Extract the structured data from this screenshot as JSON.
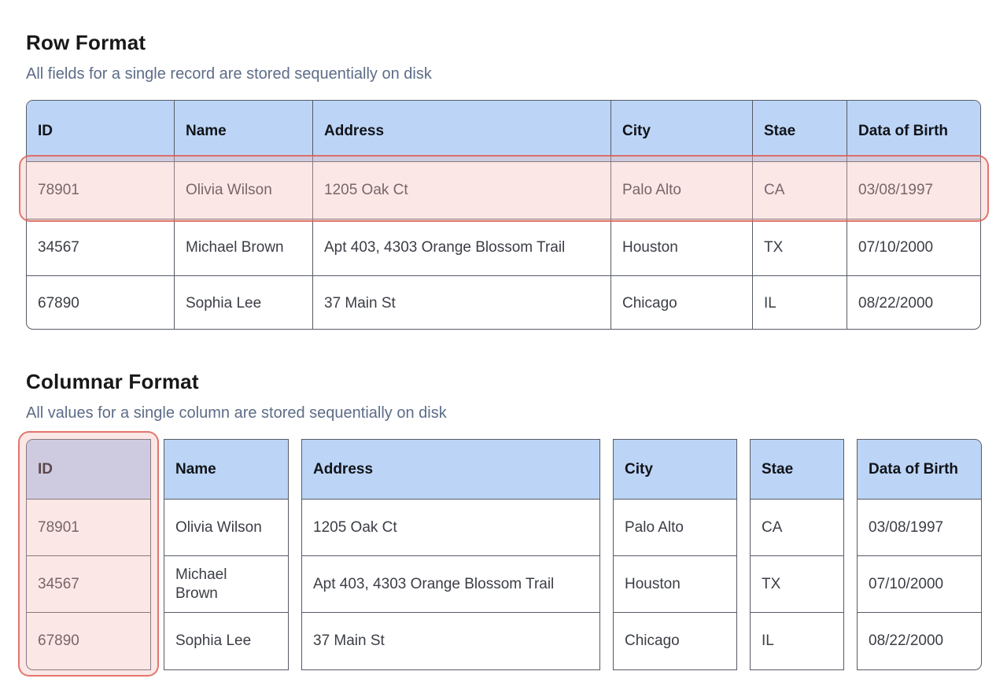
{
  "row_format": {
    "title": "Row Format",
    "subtitle": "All fields for a single record are stored sequentially on disk",
    "columns": [
      "ID",
      "Name",
      "Address",
      "City",
      "Stae",
      "Data of Birth"
    ],
    "rows": [
      [
        "78901",
        "Olivia Wilson",
        "1205 Oak Ct",
        "Palo Alto",
        "CA",
        "03/08/1997"
      ],
      [
        "34567",
        "Michael Brown",
        "Apt 403, 4303 Orange Blossom Trail",
        "Houston",
        "TX",
        "07/10/2000"
      ],
      [
        "67890",
        "Sophia Lee",
        "37 Main St",
        "Chicago",
        "IL",
        "08/22/2000"
      ]
    ],
    "highlighted_row_index": 0
  },
  "columnar_format": {
    "title": "Columnar Format",
    "subtitle": "All values for a single column are stored sequentially on disk",
    "columns": [
      {
        "header": "ID",
        "values": [
          "78901",
          "34567",
          "67890"
        ],
        "highlighted": true
      },
      {
        "header": "Name",
        "values": [
          "Olivia Wilson",
          "Michael Brown",
          "Sophia Lee"
        ],
        "highlighted": false
      },
      {
        "header": "Address",
        "values": [
          "1205 Oak Ct",
          "Apt 403, 4303 Orange Blossom Trail",
          "37 Main St"
        ],
        "highlighted": false
      },
      {
        "header": "City",
        "values": [
          "Palo Alto",
          "Houston",
          "Chicago"
        ],
        "highlighted": false
      },
      {
        "header": "Stae",
        "values": [
          "CA",
          "TX",
          "IL"
        ],
        "highlighted": false
      },
      {
        "header": "Data of Birth",
        "values": [
          "03/08/1997",
          "07/10/2000",
          "08/22/2000"
        ],
        "highlighted": false
      }
    ]
  },
  "colors": {
    "header_blue": "#bcd5f6",
    "table_border": "#565b64",
    "highlight_border": "#de544a",
    "highlight_fill": "#fbeceb",
    "title_text": "#181818",
    "subtitle_text": "#5d6c88",
    "cell_text": "#3b3e45"
  }
}
